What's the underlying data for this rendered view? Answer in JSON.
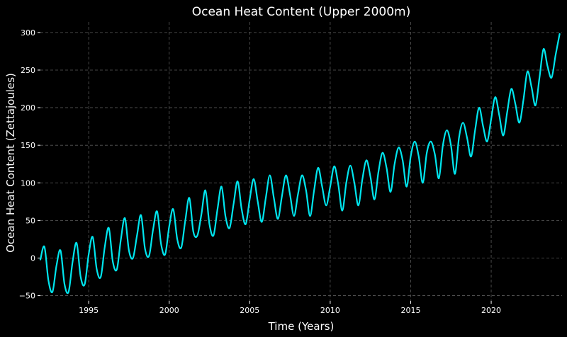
{
  "chart_data": {
    "type": "line",
    "title": "Ocean Heat Content (Upper 2000m)",
    "xlabel": "Time (Years)",
    "ylabel": "Ocean Heat Content (Zettajoules)",
    "xlim": [
      1992.0,
      2024.4
    ],
    "ylim": [
      -57,
      314
    ],
    "xticks": [
      1995,
      2000,
      2005,
      2010,
      2015,
      2020
    ],
    "yticks": [
      -50,
      0,
      50,
      100,
      150,
      200,
      250,
      300
    ],
    "grid": true,
    "line_color": "#00e5ee",
    "background": "#000000",
    "series": [
      {
        "x": [
          1992.0,
          1992.25,
          1992.5,
          1992.75,
          1993.0,
          1993.25,
          1993.5,
          1993.75,
          1994.0,
          1994.25,
          1994.5,
          1994.75,
          1995.0,
          1995.25,
          1995.5,
          1995.75,
          1996.0,
          1996.25,
          1996.5,
          1996.75,
          1997.0,
          1997.25,
          1997.5,
          1997.75,
          1998.0,
          1998.25,
          1998.5,
          1998.75,
          1999.0,
          1999.25,
          1999.5,
          1999.75,
          2000.0,
          2000.25,
          2000.5,
          2000.75,
          2001.0,
          2001.25,
          2001.5,
          2001.75,
          2002.0,
          2002.25,
          2002.5,
          2002.75,
          2003.0,
          2003.25,
          2003.5,
          2003.75,
          2004.0,
          2004.25,
          2004.5,
          2004.75,
          2005.0,
          2005.25,
          2005.5,
          2005.75,
          2006.0,
          2006.25,
          2006.5,
          2006.75,
          2007.0,
          2007.25,
          2007.5,
          2007.75,
          2008.0,
          2008.25,
          2008.5,
          2008.75,
          2009.0,
          2009.25,
          2009.5,
          2009.75,
          2010.0,
          2010.25,
          2010.5,
          2010.75,
          2011.0,
          2011.25,
          2011.5,
          2011.75,
          2012.0,
          2012.25,
          2012.5,
          2012.75,
          2013.0,
          2013.25,
          2013.5,
          2013.75,
          2014.0,
          2014.25,
          2014.5,
          2014.75,
          2015.0,
          2015.25,
          2015.5,
          2015.75,
          2016.0,
          2016.25,
          2016.5,
          2016.75,
          2017.0,
          2017.25,
          2017.5,
          2017.75,
          2018.0,
          2018.25,
          2018.5,
          2018.75,
          2019.0,
          2019.25,
          2019.5,
          2019.75,
          2020.0,
          2020.25,
          2020.5,
          2020.75,
          2021.0,
          2021.25,
          2021.5,
          2021.75,
          2022.0,
          2022.25,
          2022.5,
          2022.75,
          2023.0,
          2023.25,
          2023.5,
          2023.75,
          2024.0,
          2024.25
        ],
        "y": [
          -2,
          15,
          -30,
          -45,
          -10,
          10,
          -35,
          -45,
          -5,
          20,
          -25,
          -35,
          5,
          28,
          -15,
          -25,
          15,
          40,
          -5,
          -15,
          25,
          53,
          10,
          0,
          30,
          57,
          12,
          3,
          38,
          62,
          18,
          5,
          42,
          65,
          25,
          14,
          50,
          80,
          35,
          30,
          58,
          90,
          45,
          30,
          65,
          95,
          55,
          40,
          72,
          102,
          65,
          45,
          78,
          105,
          75,
          48,
          80,
          110,
          80,
          52,
          82,
          110,
          85,
          56,
          85,
          110,
          90,
          56,
          90,
          120,
          95,
          70,
          95,
          122,
          98,
          63,
          100,
          123,
          100,
          70,
          105,
          130,
          108,
          78,
          115,
          140,
          120,
          88,
          125,
          147,
          130,
          95,
          135,
          155,
          135,
          100,
          140,
          155,
          138,
          106,
          150,
          170,
          150,
          112,
          160,
          180,
          160,
          135,
          170,
          200,
          175,
          155,
          185,
          214,
          190,
          163,
          195,
          225,
          205,
          180,
          210,
          248,
          228,
          203,
          240,
          278,
          255,
          240,
          270,
          298
        ]
      }
    ]
  }
}
